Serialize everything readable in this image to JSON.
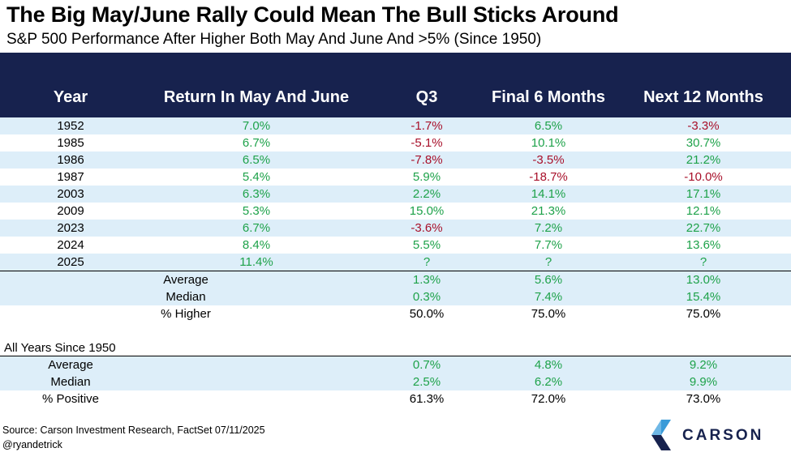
{
  "title": "The Big May/June Rally Could Mean The Bull Sticks Around",
  "subtitle": "S&P 500 Performance After Higher Both May And June And >5% (Since 1950)",
  "columns": [
    "Year",
    "Return In May And June",
    "Q3",
    "Final 6 Months",
    "Next 12 Months"
  ],
  "rows": [
    {
      "year": "1952",
      "ret": "7.0%",
      "q3": "-1.7%",
      "f6": "6.5%",
      "n12": "-3.3%"
    },
    {
      "year": "1985",
      "ret": "6.7%",
      "q3": "-5.1%",
      "f6": "10.1%",
      "n12": "30.7%"
    },
    {
      "year": "1986",
      "ret": "6.5%",
      "q3": "-7.8%",
      "f6": "-3.5%",
      "n12": "21.2%"
    },
    {
      "year": "1987",
      "ret": "5.4%",
      "q3": "5.9%",
      "f6": "-18.7%",
      "n12": "-10.0%"
    },
    {
      "year": "2003",
      "ret": "6.3%",
      "q3": "2.2%",
      "f6": "14.1%",
      "n12": "17.1%"
    },
    {
      "year": "2009",
      "ret": "5.3%",
      "q3": "15.0%",
      "f6": "21.3%",
      "n12": "12.1%"
    },
    {
      "year": "2023",
      "ret": "6.7%",
      "q3": "-3.6%",
      "f6": "7.2%",
      "n12": "22.7%"
    },
    {
      "year": "2024",
      "ret": "8.4%",
      "q3": "5.5%",
      "f6": "7.7%",
      "n12": "13.6%"
    },
    {
      "year": "2025",
      "ret": "11.4%",
      "q3": "?",
      "f6": "?",
      "n12": "?"
    }
  ],
  "summary": [
    {
      "label": "Average",
      "q3": "1.3%",
      "f6": "5.6%",
      "n12": "13.0%"
    },
    {
      "label": "Median",
      "q3": "0.3%",
      "f6": "7.4%",
      "n12": "15.4%"
    },
    {
      "label": "% Higher",
      "q3": "50.0%",
      "f6": "75.0%",
      "n12": "75.0%"
    }
  ],
  "all_years_label": "All Years Since 1950",
  "all_years": [
    {
      "label": "Average",
      "q3": "0.7%",
      "f6": "4.8%",
      "n12": "9.2%"
    },
    {
      "label": "Median",
      "q3": "2.5%",
      "f6": "6.2%",
      "n12": "9.9%"
    },
    {
      "label": "% Positive",
      "q3": "61.3%",
      "f6": "72.0%",
      "n12": "73.0%"
    }
  ],
  "source": "Source: Carson Investment Research, FactSet 07/11/2025",
  "handle": "@ryandetrick",
  "logo_text": "CARSON",
  "colors": {
    "header": "#17224e",
    "band": "#ddeef9",
    "positive": "#1ea24a",
    "negative": "#a8102a",
    "logo_light": "#3a9bd8",
    "logo_dark": "#17224e"
  },
  "chart_data": {
    "type": "table",
    "title": "The Big May/June Rally Could Mean The Bull Sticks Around",
    "subtitle": "S&P 500 Performance After Higher Both May And June And >5% (Since 1950)",
    "columns": [
      "Year",
      "Return In May And June",
      "Q3",
      "Final 6 Months",
      "Next 12 Months"
    ],
    "cells": [
      [
        "1952",
        "7.0%",
        "-1.7%",
        "6.5%",
        "-3.3%"
      ],
      [
        "1985",
        "6.7%",
        "-5.1%",
        "10.1%",
        "30.7%"
      ],
      [
        "1986",
        "6.5%",
        "-7.8%",
        "-3.5%",
        "21.2%"
      ],
      [
        "1987",
        "5.4%",
        "5.9%",
        "-18.7%",
        "-10.0%"
      ],
      [
        "2003",
        "6.3%",
        "2.2%",
        "14.1%",
        "17.1%"
      ],
      [
        "2009",
        "5.3%",
        "15.0%",
        "21.3%",
        "12.1%"
      ],
      [
        "2023",
        "6.7%",
        "-3.6%",
        "7.2%",
        "22.7%"
      ],
      [
        "2024",
        "8.4%",
        "5.5%",
        "7.7%",
        "13.6%"
      ],
      [
        "2025",
        "11.4%",
        "?",
        "?",
        "?"
      ],
      [
        "Average",
        "",
        "1.3%",
        "5.6%",
        "13.0%"
      ],
      [
        "Median",
        "",
        "0.3%",
        "7.4%",
        "15.4%"
      ],
      [
        "% Higher",
        "",
        "50.0%",
        "75.0%",
        "75.0%"
      ]
    ],
    "all_years_since_1950": [
      [
        "Average",
        "0.7%",
        "4.8%",
        "9.2%"
      ],
      [
        "Median",
        "2.5%",
        "6.2%",
        "9.9%"
      ],
      [
        "% Positive",
        "61.3%",
        "72.0%",
        "73.0%"
      ]
    ]
  }
}
